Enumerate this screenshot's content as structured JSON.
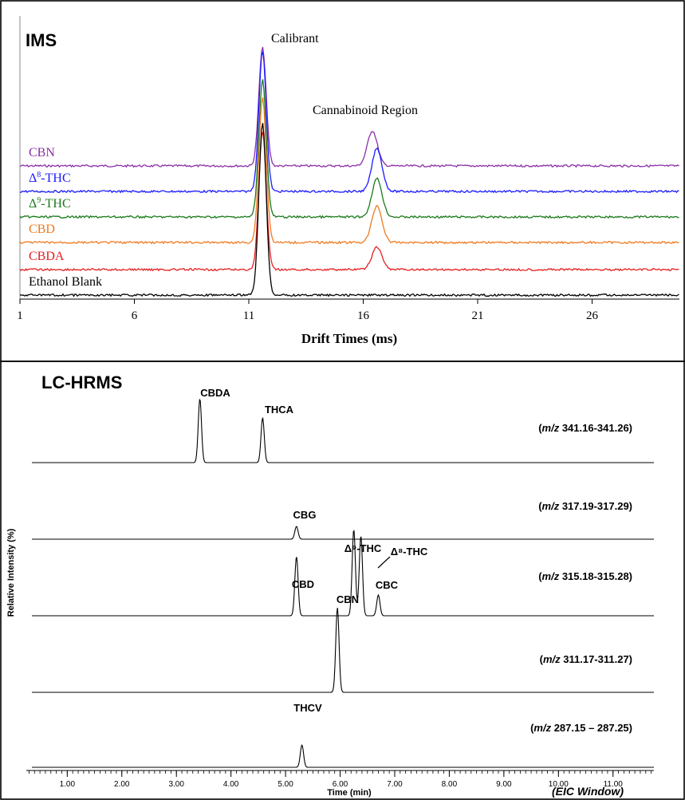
{
  "chart_data": [
    {
      "type": "line",
      "panel_label": "IMS",
      "xlabel": "Drift Times (ms)",
      "xlim": [
        1,
        30.6
      ],
      "x_ticks": [
        "1",
        "6",
        "11",
        "16",
        "21",
        "26"
      ],
      "annotations": [
        "Calibrant",
        "Cannabinoid Region"
      ],
      "grid": false,
      "legend": "inline labels at left of each trace",
      "series": [
        {
          "name": "CBN",
          "color": "#8b2fa8",
          "peaks": [
            {
              "x": 11.6,
              "height": 148
            },
            {
              "x": 16.4,
              "height": 44
            }
          ]
        },
        {
          "name": "Δ⁸-THC",
          "label_base": "Δ",
          "label_sup": "8",
          "label_tail": "-THC",
          "color": "#1a1aff",
          "peaks": [
            {
              "x": 11.6,
              "height": 176
            },
            {
              "x": 16.6,
              "height": 54
            }
          ]
        },
        {
          "name": "Δ⁹-THC",
          "label_base": "Δ",
          "label_sup": "9",
          "label_tail": "-THC",
          "color": "#1a7a1a",
          "peaks": [
            {
              "x": 11.6,
              "height": 172
            },
            {
              "x": 16.6,
              "height": 48
            }
          ]
        },
        {
          "name": "CBD",
          "color": "#f07a20",
          "peaks": [
            {
              "x": 11.6,
              "height": 182
            },
            {
              "x": 16.6,
              "height": 46
            }
          ]
        },
        {
          "name": "CBDA",
          "color": "#e32020",
          "peaks": [
            {
              "x": 11.6,
              "height": 173
            },
            {
              "x": 16.6,
              "height": 28
            }
          ]
        },
        {
          "name": "Ethanol Blank",
          "color": "#000000",
          "peaks": [
            {
              "x": 11.6,
              "height": 215
            }
          ]
        }
      ]
    },
    {
      "type": "line",
      "panel_label": "LC-HRMS",
      "xlabel": "Time (min)",
      "ylabel": "Relative Intensity  (%)",
      "xlim": [
        0.25,
        11.75
      ],
      "x_ticks": [
        "1.00",
        "2.00",
        "3.00",
        "4.00",
        "5.00",
        "6.00",
        "7.00",
        "8.00",
        "9.00",
        "10.00",
        "11.00"
      ],
      "corner_label": "(EIC Window)",
      "grid": false,
      "series": [
        {
          "window": "(m/z 341.16-341.26)",
          "window_mz": "m/z",
          "window_range": " 341.16-341.26)",
          "peaks": [
            {
              "x": 3.43,
              "height": 80,
              "label": "CBDA"
            },
            {
              "x": 4.58,
              "height": 56,
              "label": "THCA"
            }
          ]
        },
        {
          "window": "(m/z 317.19-317.29)",
          "window_mz": "m/z",
          "window_range": " 317.19-317.29)",
          "peaks": [
            {
              "x": 5.2,
              "height": 16,
              "label": "CBG"
            }
          ]
        },
        {
          "window": "(m/z 315.18-315.28)",
          "window_mz": "m/z",
          "window_range": " 315.18-315.28)",
          "peaks": [
            {
              "x": 5.2,
              "height": 74,
              "label": "CBD"
            },
            {
              "x": 6.25,
              "height": 108,
              "label": "Δ⁹-THC"
            },
            {
              "x": 6.38,
              "height": 100,
              "label": "Δ⁸-THC"
            },
            {
              "x": 6.7,
              "height": 26,
              "label": "CBC"
            }
          ]
        },
        {
          "window": "(m/z 311.17-311.27)",
          "window_mz": "m/z",
          "window_range": " 311.17-311.27)",
          "peaks": [
            {
              "x": 5.95,
              "height": 106,
              "label": "CBN"
            }
          ]
        },
        {
          "window": "(m/z 287.15 – 287.25)",
          "window_mz": "m/z",
          "window_range": " 287.15 – 287.25)",
          "peaks": [
            {
              "x": 5.3,
              "height": 28,
              "label": "THCV"
            }
          ]
        }
      ]
    }
  ]
}
